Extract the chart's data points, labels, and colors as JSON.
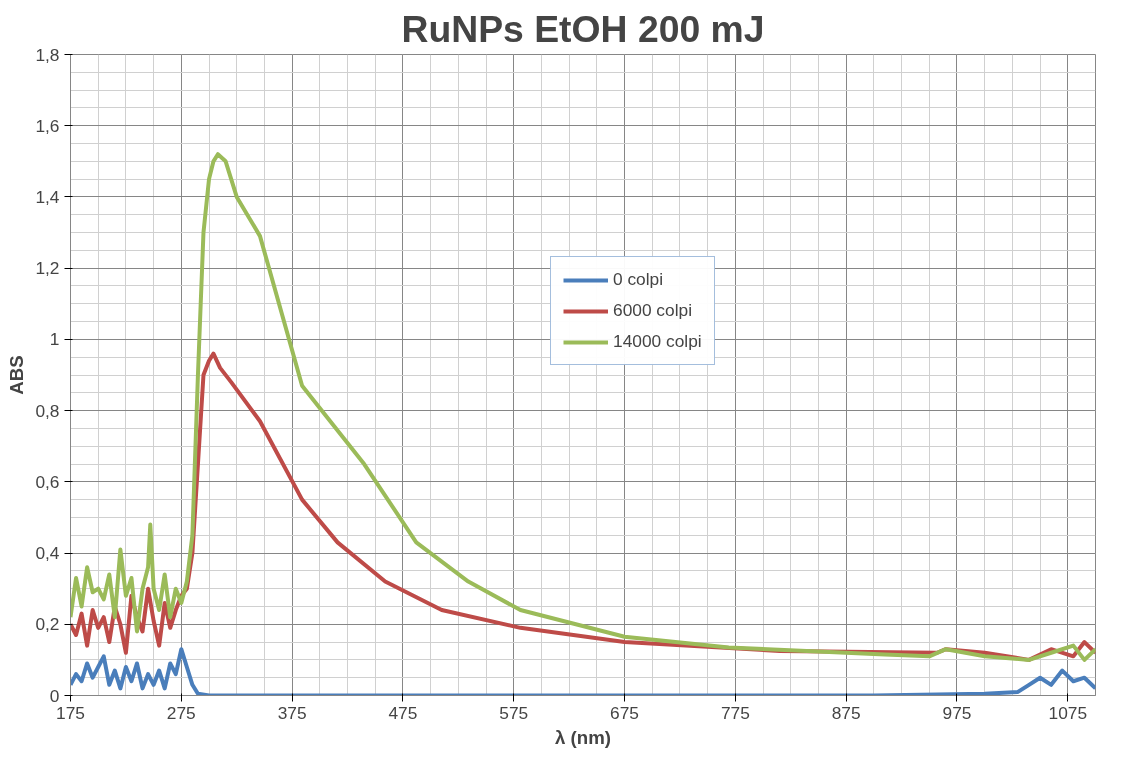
{
  "chart_data": {
    "type": "line",
    "title": "RuNPs EtOH 200 mJ",
    "xlabel": "λ (nm)",
    "ylabel": "ABS",
    "xlim": [
      175,
      1100
    ],
    "xticks": [
      175,
      275,
      375,
      475,
      575,
      675,
      775,
      875,
      975,
      1075
    ],
    "ylim": [
      0,
      1.8
    ],
    "yticks": [
      0,
      {
        "value": 0.2,
        "label": "0,2"
      },
      {
        "value": 0.4,
        "label": "0,4"
      },
      {
        "value": 0.6,
        "label": "0,6"
      },
      {
        "value": 0.8,
        "label": "0,8"
      },
      1,
      {
        "value": 1.2,
        "label": "1,2"
      },
      {
        "value": 1.4,
        "label": "1,4"
      },
      {
        "value": 1.6,
        "label": "1,6"
      },
      {
        "value": 1.8,
        "label": "1,8"
      }
    ],
    "grid": true,
    "legend": "top right",
    "marker": "none",
    "line_style": "solid",
    "series": [
      {
        "name": "0 colpi",
        "color": "#4a7ebb",
        "x": [
          175,
          180,
          185,
          190,
          195,
          200,
          205,
          210,
          215,
          220,
          225,
          230,
          235,
          240,
          245,
          250,
          255,
          260,
          265,
          270,
          275,
          280,
          285,
          290,
          300,
          400,
          500,
          600,
          700,
          800,
          900,
          1000,
          1030,
          1040,
          1050,
          1060,
          1070,
          1080,
          1090,
          1100
        ],
        "values": [
          0.03,
          0.06,
          0.04,
          0.09,
          0.05,
          0.08,
          0.11,
          0.03,
          0.07,
          0.02,
          0.08,
          0.04,
          0.09,
          0.02,
          0.06,
          0.03,
          0.07,
          0.02,
          0.09,
          0.06,
          0.13,
          0.08,
          0.03,
          0.005,
          0,
          0,
          0,
          0,
          0,
          0,
          0,
          0.005,
          0.01,
          0.03,
          0.05,
          0.03,
          0.07,
          0.04,
          0.05,
          0.02
        ]
      },
      {
        "name": "6000 colpi",
        "color": "#be4b48",
        "x": [
          175,
          180,
          185,
          190,
          195,
          200,
          205,
          210,
          215,
          220,
          225,
          230,
          235,
          240,
          245,
          250,
          255,
          260,
          265,
          270,
          275,
          280,
          285,
          290,
          295,
          300,
          304,
          310,
          320,
          346,
          384,
          416,
          459,
          510,
          581,
          675,
          815,
          957,
          965,
          1000,
          1040,
          1060,
          1080,
          1090,
          1100
        ],
        "values": [
          0.2,
          0.17,
          0.23,
          0.14,
          0.24,
          0.19,
          0.22,
          0.15,
          0.25,
          0.2,
          0.12,
          0.28,
          0.22,
          0.18,
          0.3,
          0.21,
          0.14,
          0.26,
          0.19,
          0.24,
          0.28,
          0.3,
          0.4,
          0.65,
          0.9,
          0.94,
          0.96,
          0.92,
          0.88,
          0.77,
          0.55,
          0.43,
          0.32,
          0.24,
          0.19,
          0.15,
          0.125,
          0.12,
          0.13,
          0.12,
          0.1,
          0.13,
          0.11,
          0.15,
          0.12
        ]
      },
      {
        "name": "14000 colpi",
        "color": "#9bbb59",
        "x": [
          175,
          180,
          185,
          190,
          195,
          200,
          205,
          210,
          215,
          220,
          225,
          230,
          235,
          240,
          245,
          247,
          250,
          255,
          260,
          265,
          270,
          275,
          280,
          285,
          290,
          295,
          300,
          304,
          308,
          315,
          325,
          346,
          384,
          440,
          487,
          534,
          581,
          675,
          769,
          910,
          950,
          965,
          1000,
          1040,
          1060,
          1080,
          1090,
          1100
        ],
        "values": [
          0.22,
          0.33,
          0.25,
          0.36,
          0.29,
          0.3,
          0.27,
          0.34,
          0.22,
          0.41,
          0.28,
          0.33,
          0.18,
          0.3,
          0.36,
          0.48,
          0.3,
          0.24,
          0.34,
          0.22,
          0.3,
          0.26,
          0.32,
          0.45,
          0.9,
          1.3,
          1.45,
          1.5,
          1.52,
          1.5,
          1.4,
          1.29,
          0.87,
          0.65,
          0.43,
          0.32,
          0.24,
          0.165,
          0.135,
          0.115,
          0.11,
          0.13,
          0.11,
          0.1,
          0.12,
          0.14,
          0.1,
          0.13
        ]
      }
    ]
  }
}
